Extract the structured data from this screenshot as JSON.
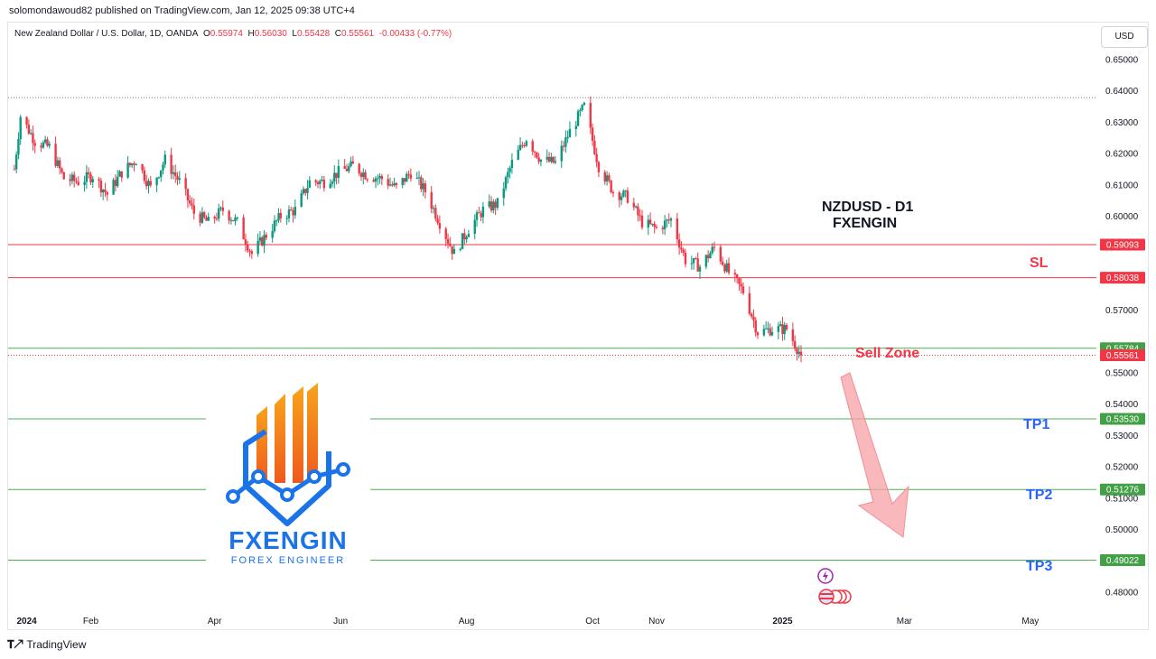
{
  "header": {
    "published": "solomondawoud82 published on TradingView.com, Jan 12, 2025 09:38 UTC+4"
  },
  "legend": {
    "symbol": "New Zealand Dollar / U.S. Dollar, 1D, OANDA",
    "o_label": "O",
    "o_value": "0.55974",
    "h_label": "H",
    "h_value": "0.56030",
    "l_label": "L",
    "l_value": "0.55428",
    "c_label": "C",
    "c_value": "0.55561",
    "change": "-0.00433 (-0.77%)"
  },
  "currency_button": "USD",
  "footer": {
    "brand": "TradingView"
  },
  "annotations": {
    "title_line1": "NZDUSD - D1",
    "title_line2": "FXENGIN",
    "sl": "SL",
    "sell_zone": "Sell Zone",
    "tp1": "TP1",
    "tp2": "TP2",
    "tp3": "TP3"
  },
  "logo": {
    "name": "FXENGIN",
    "tagline": "FOREX ENGINEER"
  },
  "colors": {
    "up": "#089981",
    "down": "#f23645",
    "red_line": "#f23645",
    "green_line": "#4caf50",
    "tp_text": "#2962ff",
    "arrow_fill": "#f7a1a6"
  },
  "chart_data": {
    "type": "candlestick",
    "instrument": "NZDUSD",
    "timeframe": "1D",
    "y_axis": {
      "ylim": [
        0.4745,
        0.6595
      ],
      "tick_values": [
        0.48,
        0.49,
        0.5,
        0.51,
        0.52,
        0.53,
        0.54,
        0.55,
        0.56,
        0.57,
        0.58,
        0.59,
        0.6,
        0.61,
        0.62,
        0.63,
        0.64,
        0.65
      ],
      "tick_labels": [
        "0.48000",
        "",
        "0.50000",
        "0.51000",
        "0.52000",
        "0.53000",
        "0.54000",
        "0.55000",
        "",
        "0.57000",
        "",
        "",
        "0.60000",
        "0.61000",
        "0.62000",
        "0.63000",
        "0.64000",
        "0.65000"
      ]
    },
    "x_axis": {
      "labels": [
        "2024",
        "Feb",
        "Apr",
        "Jun",
        "Aug",
        "Oct",
        "Nov",
        "2025",
        "Mar",
        "May"
      ],
      "dates": [
        "2024-01-01",
        "2024-02-01",
        "2024-04-01",
        "2024-06-01",
        "2024-08-01",
        "2024-10-01",
        "2024-11-01",
        "2025-01-01",
        "2025-03-01",
        "2025-05-01"
      ],
      "xlim": [
        "2023-12-23",
        "2025-06-02"
      ]
    },
    "price_levels": [
      {
        "value": 0.59093,
        "label": "0.59093",
        "color": "#f23645",
        "style": "solid"
      },
      {
        "value": 0.58038,
        "label": "0.58038",
        "color": "#f23645",
        "style": "solid"
      },
      {
        "value": 0.55784,
        "label": "0.55784",
        "color": "#4caf50",
        "style": "solid"
      },
      {
        "value": 0.55561,
        "label": "0.55561",
        "color": "#f23645",
        "style": "dotted"
      },
      {
        "value": 0.5353,
        "label": "0.53530",
        "color": "#4caf50",
        "style": "solid"
      },
      {
        "value": 0.51276,
        "label": "0.51276",
        "color": "#4caf50",
        "style": "solid"
      },
      {
        "value": 0.49022,
        "label": "0.49022",
        "color": "#4caf50",
        "style": "solid"
      }
    ],
    "high_line": 0.6378,
    "closes": [
      {
        "date": "2023-12-26",
        "close": 0.615
      },
      {
        "date": "2023-12-29",
        "close": 0.632
      },
      {
        "date": "2024-01-05",
        "close": 0.624
      },
      {
        "date": "2024-01-12",
        "close": 0.622
      },
      {
        "date": "2024-01-19",
        "close": 0.612
      },
      {
        "date": "2024-01-26",
        "close": 0.611
      },
      {
        "date": "2024-02-02",
        "close": 0.613
      },
      {
        "date": "2024-02-09",
        "close": 0.607
      },
      {
        "date": "2024-02-16",
        "close": 0.614
      },
      {
        "date": "2024-02-23",
        "close": 0.618
      },
      {
        "date": "2024-03-01",
        "close": 0.609
      },
      {
        "date": "2024-03-08",
        "close": 0.618
      },
      {
        "date": "2024-03-15",
        "close": 0.611
      },
      {
        "date": "2024-03-22",
        "close": 0.601
      },
      {
        "date": "2024-03-29",
        "close": 0.598
      },
      {
        "date": "2024-04-05",
        "close": 0.602
      },
      {
        "date": "2024-04-12",
        "close": 0.598
      },
      {
        "date": "2024-04-19",
        "close": 0.588
      },
      {
        "date": "2024-04-26",
        "close": 0.594
      },
      {
        "date": "2024-05-03",
        "close": 0.6
      },
      {
        "date": "2024-05-10",
        "close": 0.602
      },
      {
        "date": "2024-05-17",
        "close": 0.611
      },
      {
        "date": "2024-05-24",
        "close": 0.611
      },
      {
        "date": "2024-05-31",
        "close": 0.614
      },
      {
        "date": "2024-06-07",
        "close": 0.616
      },
      {
        "date": "2024-06-14",
        "close": 0.613
      },
      {
        "date": "2024-06-21",
        "close": 0.612
      },
      {
        "date": "2024-06-28",
        "close": 0.609
      },
      {
        "date": "2024-07-05",
        "close": 0.614
      },
      {
        "date": "2024-07-12",
        "close": 0.608
      },
      {
        "date": "2024-07-19",
        "close": 0.598
      },
      {
        "date": "2024-07-26",
        "close": 0.588
      },
      {
        "date": "2024-08-02",
        "close": 0.596
      },
      {
        "date": "2024-08-09",
        "close": 0.602
      },
      {
        "date": "2024-08-16",
        "close": 0.604
      },
      {
        "date": "2024-08-23",
        "close": 0.617
      },
      {
        "date": "2024-08-30",
        "close": 0.625
      },
      {
        "date": "2024-09-06",
        "close": 0.618
      },
      {
        "date": "2024-09-13",
        "close": 0.617
      },
      {
        "date": "2024-09-20",
        "close": 0.627
      },
      {
        "date": "2024-09-27",
        "close": 0.635
      },
      {
        "date": "2024-10-04",
        "close": 0.616
      },
      {
        "date": "2024-10-11",
        "close": 0.608
      },
      {
        "date": "2024-10-18",
        "close": 0.606
      },
      {
        "date": "2024-10-25",
        "close": 0.598
      },
      {
        "date": "2024-11-01",
        "close": 0.596
      },
      {
        "date": "2024-11-08",
        "close": 0.599
      },
      {
        "date": "2024-11-15",
        "close": 0.586
      },
      {
        "date": "2024-11-22",
        "close": 0.584
      },
      {
        "date": "2024-11-29",
        "close": 0.59
      },
      {
        "date": "2024-12-06",
        "close": 0.582
      },
      {
        "date": "2024-12-13",
        "close": 0.576
      },
      {
        "date": "2024-12-20",
        "close": 0.563
      },
      {
        "date": "2024-12-27",
        "close": 0.564
      },
      {
        "date": "2025-01-03",
        "close": 0.564
      },
      {
        "date": "2025-01-10",
        "close": 0.5556
      }
    ]
  }
}
